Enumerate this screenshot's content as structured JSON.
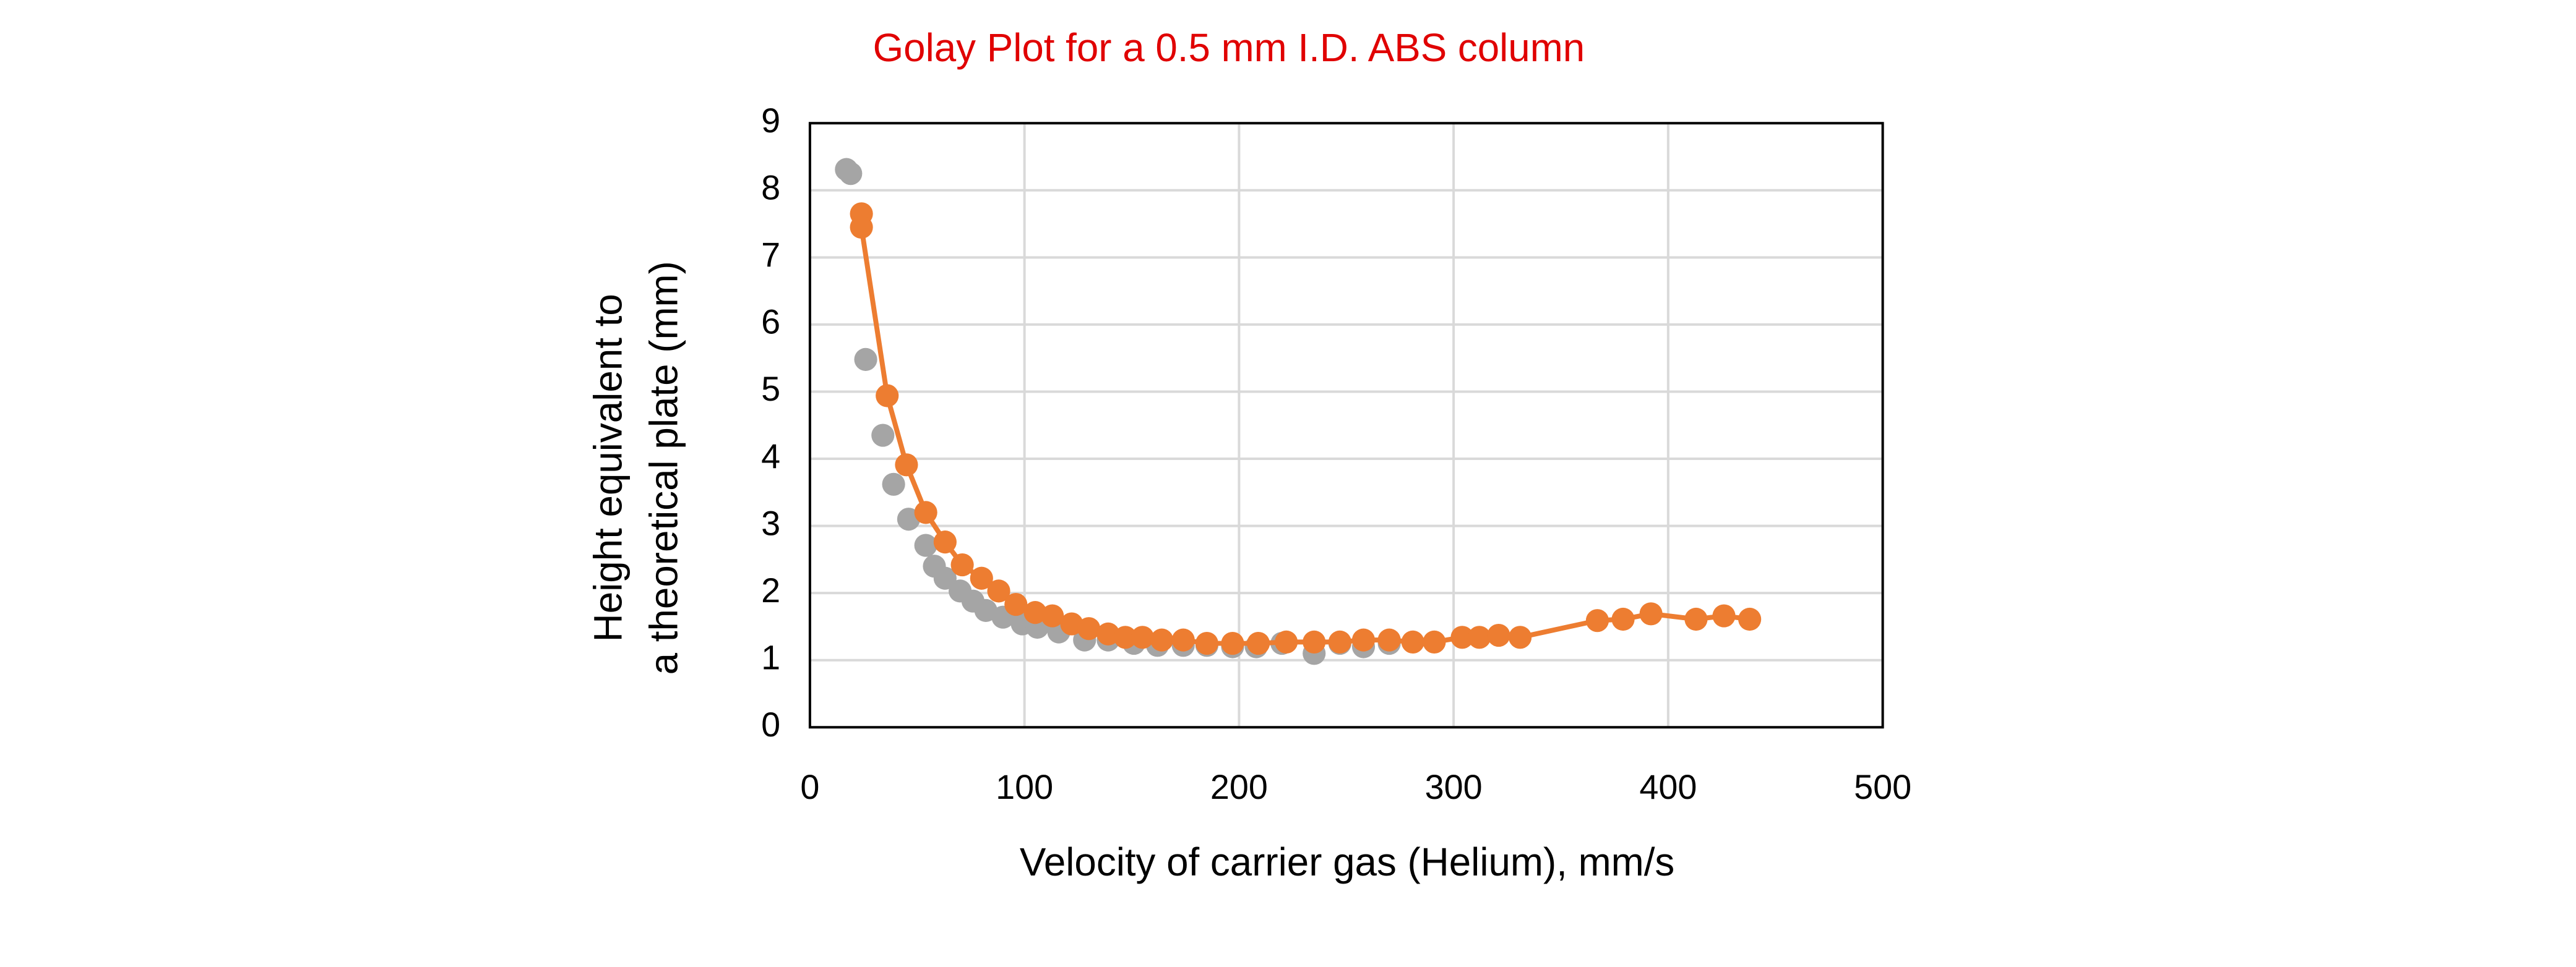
{
  "chart_data": {
    "type": "scatter",
    "title": "Golay Plot for a 0.5 mm I.D. ABS column",
    "title_color": "#e00000",
    "x_label": "Velocity of carrier gas (Helium), mm/s",
    "y_label": [
      "Height equivalent to",
      "a theoretical plate (mm)"
    ],
    "xlim": [
      0,
      500
    ],
    "xticks": [
      0,
      100,
      200,
      300,
      400,
      500
    ],
    "ylim": [
      0,
      9
    ],
    "yticks": [
      0,
      1,
      2,
      3,
      4,
      5,
      6,
      7,
      8,
      9
    ],
    "grid": true,
    "series": [
      {
        "color": "#a5a5a5",
        "show_line": false,
        "x": [
          17,
          19,
          26,
          34,
          39,
          46,
          54,
          58,
          63,
          70,
          76,
          82,
          90,
          99,
          106,
          116,
          128,
          139,
          151,
          162,
          174,
          185,
          197,
          208,
          220,
          235,
          247,
          258,
          270
        ],
        "values": [
          8.31,
          8.25,
          5.48,
          4.35,
          3.62,
          3.1,
          2.71,
          2.4,
          2.22,
          2.03,
          1.88,
          1.74,
          1.64,
          1.54,
          1.49,
          1.42,
          1.3,
          1.3,
          1.25,
          1.22,
          1.22,
          1.22,
          1.2,
          1.2,
          1.25,
          1.1,
          1.25,
          1.2,
          1.25
        ]
      },
      {
        "color": "#ed7d31",
        "show_line": true,
        "x": [
          24,
          24,
          36,
          45,
          54,
          63,
          71,
          80,
          88,
          96,
          105,
          113,
          122,
          130,
          139,
          147,
          155,
          164,
          174,
          185,
          197,
          209,
          222,
          235,
          247,
          258,
          270,
          281,
          291,
          304,
          312,
          321,
          331,
          367,
          379,
          392,
          413,
          426,
          438
        ],
        "values": [
          7.65,
          7.45,
          4.94,
          3.91,
          3.2,
          2.76,
          2.42,
          2.22,
          2.03,
          1.83,
          1.71,
          1.66,
          1.54,
          1.47,
          1.39,
          1.34,
          1.34,
          1.3,
          1.3,
          1.25,
          1.25,
          1.25,
          1.27,
          1.27,
          1.27,
          1.3,
          1.3,
          1.27,
          1.27,
          1.34,
          1.34,
          1.37,
          1.34,
          1.59,
          1.61,
          1.69,
          1.61,
          1.66,
          1.61
        ]
      }
    ]
  }
}
